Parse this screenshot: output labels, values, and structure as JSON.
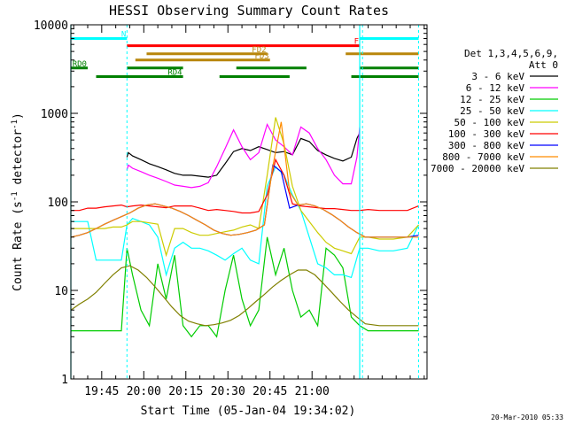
{
  "chart_data": {
    "type": "line",
    "title": "HESSI Observing Summary Count Rates",
    "xlabel": "Start Time (05-Jan-04 19:34:02)",
    "ylabel_parts": [
      "Count Rate (s",
      "-1",
      " detector",
      "-1",
      ")"
    ],
    "yscale": "log",
    "ylim": [
      1,
      10000
    ],
    "xlim_minutes_after_1934": [
      0,
      127
    ],
    "x_ticks": [
      {
        "label": "19:45",
        "minute": 11
      },
      {
        "label": "20:00",
        "minute": 26
      },
      {
        "label": "20:15",
        "minute": 41
      },
      {
        "label": "20:30",
        "minute": 56
      },
      {
        "label": "20:45",
        "minute": 71
      },
      {
        "label": "21:00",
        "minute": 86
      }
    ],
    "y_ticks": [
      {
        "label": "1",
        "value": 1
      },
      {
        "label": "10",
        "value": 10
      },
      {
        "label": "100",
        "value": 100
      },
      {
        "label": "1000",
        "value": 1000
      },
      {
        "label": "10000",
        "value": 10000
      }
    ],
    "timestamp": "20-Mar-2010 05:33",
    "legend": {
      "header": [
        "Det 1,3,4,5,6,9,",
        "Att 0"
      ],
      "position": "right"
    },
    "bars": [
      {
        "label": "N",
        "color": "#00ffff",
        "level": 7000,
        "segments": [
          [
            0,
            20
          ],
          [
            103,
            124
          ]
        ]
      },
      {
        "label": "F",
        "color": "#ff0000",
        "level": 5800,
        "segments": [
          [
            20,
            103
          ]
        ]
      },
      {
        "label": "FD2",
        "color": "#b8860b",
        "level": 4700,
        "segments": [
          [
            27,
            70
          ],
          [
            98,
            124
          ]
        ]
      },
      {
        "label": "FD3",
        "color": "#b8860b",
        "level": 4000,
        "segments": [
          [
            23,
            71
          ]
        ]
      },
      {
        "label": "RD0",
        "color": "#008000",
        "level": 3250,
        "segments": [
          [
            0,
            6
          ],
          [
            20,
            40
          ],
          [
            59,
            84
          ],
          [
            103,
            124
          ]
        ]
      },
      {
        "label": "RD4",
        "color": "#008000",
        "level": 2600,
        "segments": [
          [
            9,
            40
          ],
          [
            53,
            78
          ],
          [
            100,
            124
          ]
        ]
      }
    ],
    "vlines_solid": [
      0,
      103
    ],
    "vlines_dashed": [
      20,
      104,
      124
    ],
    "series": [
      {
        "name": "3 - 6 keV",
        "color": "#000000",
        "x": [
          20,
          20.5,
          22,
          25,
          28,
          31,
          34,
          37,
          40,
          43,
          46,
          49,
          52,
          55,
          58,
          61,
          64,
          67,
          70,
          73,
          76,
          79,
          82,
          85,
          88,
          91,
          94,
          97,
          100,
          102,
          103
        ],
        "y": [
          320,
          360,
          330,
          300,
          270,
          250,
          230,
          210,
          200,
          200,
          195,
          190,
          200,
          270,
          370,
          400,
          380,
          420,
          390,
          360,
          370,
          340,
          520,
          480,
          380,
          340,
          310,
          290,
          320,
          520,
          600
        ]
      },
      {
        "name": "6 - 12 keV",
        "color": "#ff00ff",
        "x": [
          20,
          20.5,
          22,
          25,
          28,
          31,
          34,
          37,
          40,
          43,
          46,
          49,
          52,
          55,
          58,
          61,
          64,
          67,
          70,
          73,
          76,
          79,
          82,
          85,
          88,
          91,
          94,
          97,
          100,
          102,
          103
        ],
        "y": [
          230,
          260,
          240,
          220,
          200,
          185,
          170,
          155,
          150,
          145,
          150,
          165,
          250,
          400,
          650,
          420,
          300,
          360,
          750,
          500,
          420,
          340,
          700,
          600,
          400,
          300,
          200,
          160,
          160,
          320,
          700
        ]
      },
      {
        "name": "12 - 25 keV",
        "color": "#00cc00",
        "x": [
          0,
          3,
          6,
          9,
          12,
          15,
          18,
          20,
          22,
          25,
          28,
          31,
          34,
          37,
          40,
          43,
          46,
          49,
          52,
          55,
          58,
          61,
          64,
          67,
          70,
          73,
          76,
          79,
          82,
          85,
          88,
          91,
          94,
          97,
          100,
          103,
          106,
          110,
          115,
          120,
          124
        ],
        "y": [
          3.5,
          3.5,
          3.5,
          3.5,
          3.5,
          3.5,
          3.5,
          30,
          15,
          6,
          4,
          20,
          8,
          25,
          4,
          3,
          4,
          4,
          3,
          10,
          25,
          8,
          4,
          6,
          40,
          15,
          30,
          10,
          5,
          6,
          4,
          30,
          25,
          18,
          5,
          4,
          3.5,
          3.5,
          3.5,
          3.5,
          3.5
        ]
      },
      {
        "name": "25 - 50 keV",
        "color": "#00ffff",
        "x": [
          0,
          3,
          6,
          9,
          12,
          15,
          18,
          20,
          22,
          25,
          28,
          31,
          34,
          37,
          40,
          43,
          46,
          49,
          52,
          55,
          58,
          61,
          64,
          67,
          70,
          73,
          76,
          79,
          82,
          85,
          88,
          91,
          94,
          97,
          100,
          103,
          106,
          110,
          115,
          120,
          124
        ],
        "y": [
          60,
          60,
          60,
          22,
          22,
          22,
          22,
          55,
          65,
          60,
          55,
          40,
          15,
          30,
          35,
          30,
          30,
          28,
          25,
          22,
          26,
          30,
          22,
          20,
          150,
          250,
          200,
          120,
          80,
          40,
          20,
          18,
          15,
          15,
          14,
          30,
          30,
          28,
          28,
          30,
          55
        ]
      },
      {
        "name": "50 - 100 keV",
        "color": "#cccc00",
        "x": [
          0,
          3,
          6,
          9,
          12,
          15,
          18,
          20,
          22,
          25,
          28,
          31,
          34,
          37,
          40,
          43,
          46,
          49,
          52,
          55,
          58,
          61,
          64,
          67,
          70,
          73,
          76,
          79,
          82,
          85,
          88,
          91,
          94,
          97,
          100,
          103,
          106,
          110,
          115,
          120,
          124
        ],
        "y": [
          50,
          50,
          50,
          50,
          50,
          52,
          52,
          55,
          60,
          60,
          58,
          56,
          25,
          50,
          50,
          45,
          42,
          42,
          44,
          46,
          48,
          52,
          55,
          50,
          200,
          900,
          450,
          150,
          80,
          60,
          45,
          35,
          30,
          28,
          26,
          40,
          40,
          38,
          38,
          40,
          55
        ]
      },
      {
        "name": "100 - 300 keV",
        "color": "#ff0000",
        "x": [
          0,
          3,
          6,
          9,
          12,
          15,
          18,
          20,
          22,
          25,
          28,
          31,
          34,
          37,
          40,
          43,
          46,
          49,
          52,
          55,
          58,
          61,
          64,
          67,
          70,
          73,
          76,
          79,
          82,
          85,
          88,
          91,
          94,
          97,
          100,
          103,
          106,
          110,
          115,
          120,
          124
        ],
        "y": [
          80,
          80,
          85,
          85,
          88,
          90,
          92,
          88,
          90,
          92,
          90,
          88,
          86,
          90,
          90,
          90,
          85,
          80,
          82,
          80,
          78,
          75,
          75,
          78,
          120,
          300,
          200,
          95,
          90,
          88,
          86,
          84,
          84,
          82,
          80,
          80,
          82,
          80,
          80,
          80,
          90
        ]
      },
      {
        "name": "300 - 800 keV",
        "color": "#0000ff",
        "x": [
          0,
          3,
          6,
          9,
          12,
          15,
          18,
          21,
          24,
          27,
          30,
          33,
          36,
          39,
          42,
          45,
          48,
          51,
          54,
          57,
          60,
          63,
          66,
          69,
          72,
          75,
          78,
          81,
          84,
          87,
          90,
          93,
          96,
          99,
          102,
          105,
          110,
          115,
          120,
          124
        ],
        "y": [
          40,
          42,
          45,
          50,
          56,
          62,
          68,
          75,
          85,
          92,
          95,
          90,
          85,
          78,
          70,
          62,
          55,
          48,
          44,
          42,
          43,
          45,
          48,
          55,
          260,
          220,
          85,
          92,
          95,
          90,
          82,
          72,
          62,
          52,
          45,
          40,
          40,
          40,
          40,
          42
        ]
      },
      {
        "name": "800 - 7000 keV",
        "color": "#ff8c00",
        "x": [
          0,
          3,
          6,
          9,
          12,
          15,
          18,
          21,
          24,
          27,
          30,
          33,
          36,
          39,
          42,
          45,
          48,
          51,
          54,
          57,
          60,
          63,
          66,
          69,
          72,
          75,
          78,
          81,
          84,
          87,
          90,
          93,
          96,
          99,
          102,
          105,
          110,
          115,
          120,
          124
        ],
        "y": [
          40,
          42,
          45,
          50,
          56,
          62,
          68,
          75,
          85,
          92,
          95,
          90,
          85,
          78,
          70,
          62,
          55,
          48,
          44,
          42,
          43,
          45,
          48,
          55,
          250,
          800,
          130,
          92,
          95,
          90,
          82,
          72,
          62,
          52,
          45,
          40,
          40,
          40,
          40,
          40
        ]
      },
      {
        "name": "7000 - 20000 keV",
        "color": "#808000",
        "x": [
          0,
          3,
          6,
          9,
          12,
          15,
          18,
          21,
          24,
          27,
          30,
          33,
          36,
          39,
          42,
          45,
          48,
          51,
          54,
          57,
          60,
          63,
          66,
          69,
          72,
          75,
          78,
          81,
          84,
          87,
          90,
          93,
          96,
          99,
          102,
          105,
          110,
          115,
          120,
          124
        ],
        "y": [
          6,
          7,
          8,
          9.5,
          12,
          15,
          18,
          19,
          17,
          14,
          11,
          8.5,
          6.5,
          5.2,
          4.5,
          4.2,
          4.0,
          4.1,
          4.3,
          4.6,
          5.2,
          6.2,
          7.5,
          9.0,
          11,
          13,
          15,
          17,
          17,
          15,
          12,
          9.5,
          7.5,
          6.0,
          5.0,
          4.2,
          4.0,
          4.0,
          4.0,
          4.0
        ]
      }
    ]
  }
}
